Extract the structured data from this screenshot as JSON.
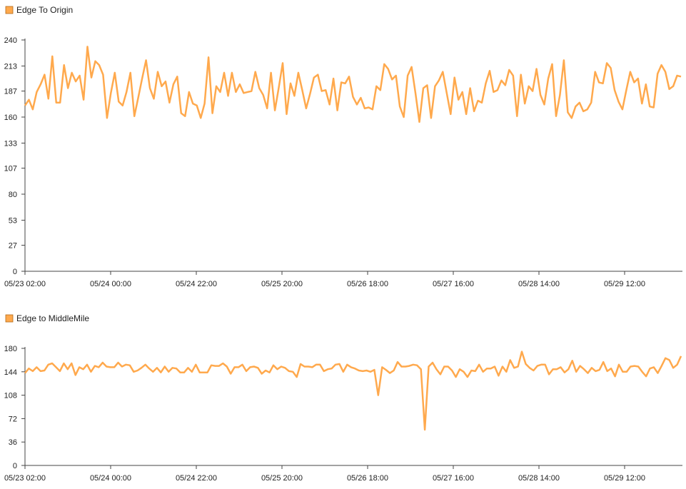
{
  "chart_data": [
    {
      "type": "line",
      "legend": "Edge To Origin",
      "color": "#ffa94d",
      "ylim": [
        0,
        240
      ],
      "yticks": [
        "0",
        "27",
        "53",
        "80",
        "107",
        "133",
        "160",
        "187",
        "213",
        "240"
      ],
      "ytick_values": [
        0,
        27,
        53,
        80,
        107,
        133,
        160,
        187,
        213,
        240
      ],
      "xticks": [
        "05/23 02:00",
        "05/24 00:00",
        "05/24 22:00",
        "05/25 20:00",
        "05/26 18:00",
        "05/27 16:00",
        "05/28 14:00",
        "05/29 12:00"
      ],
      "x_start": "05/23 02:00",
      "x_interval_hours": 1,
      "values": [
        172,
        178,
        168,
        186,
        194,
        204,
        179,
        223,
        175,
        175,
        214,
        190,
        206,
        197,
        203,
        178,
        233,
        201,
        218,
        214,
        204,
        159,
        185,
        206,
        176,
        172,
        186,
        206,
        161,
        180,
        200,
        219,
        190,
        179,
        207,
        192,
        197,
        175,
        194,
        202,
        164,
        161,
        186,
        174,
        172,
        159,
        174,
        222,
        164,
        192,
        186,
        206,
        182,
        206,
        186,
        194,
        185,
        186,
        187,
        207,
        190,
        183,
        169,
        206,
        167,
        191,
        216,
        163,
        195,
        182,
        206,
        188,
        169,
        184,
        201,
        204,
        187,
        188,
        173,
        200,
        167,
        196,
        195,
        202,
        181,
        173,
        180,
        169,
        170,
        168,
        192,
        188,
        215,
        210,
        199,
        203,
        171,
        160,
        203,
        212,
        185,
        155,
        190,
        193,
        159,
        192,
        198,
        207,
        185,
        163,
        201,
        178,
        186,
        163,
        190,
        166,
        177,
        175,
        195,
        208,
        186,
        188,
        198,
        193,
        209,
        203,
        161,
        204,
        174,
        192,
        187,
        210,
        183,
        173,
        200,
        215,
        161,
        183,
        219,
        165,
        159,
        171,
        175,
        166,
        168,
        175,
        207,
        196,
        195,
        216,
        211,
        188,
        176,
        168,
        188,
        207,
        196,
        200,
        174,
        194,
        171,
        170,
        205,
        214,
        207,
        189,
        192,
        203,
        202
      ]
    },
    {
      "type": "line",
      "legend": "Edge to MiddleMile",
      "color": "#ffa94d",
      "ylim": [
        0,
        180
      ],
      "yticks": [
        "0",
        "36",
        "72",
        "108",
        "144",
        "180"
      ],
      "ytick_values": [
        0,
        36,
        72,
        108,
        144,
        180
      ],
      "xticks": [
        "05/23 02:00",
        "05/24 00:00",
        "05/24 22:00",
        "05/25 20:00",
        "05/26 18:00",
        "05/27 16:00",
        "05/28 14:00",
        "05/29 12:00"
      ],
      "x_start": "05/23 02:00",
      "x_interval_hours": 1,
      "values": [
        142,
        149,
        145,
        151,
        145,
        146,
        155,
        157,
        151,
        145,
        157,
        148,
        157,
        139,
        151,
        148,
        155,
        144,
        153,
        151,
        158,
        152,
        151,
        151,
        158,
        152,
        155,
        154,
        144,
        146,
        150,
        155,
        149,
        144,
        150,
        143,
        152,
        144,
        150,
        149,
        143,
        143,
        150,
        144,
        155,
        143,
        143,
        143,
        154,
        153,
        153,
        157,
        152,
        141,
        151,
        151,
        155,
        145,
        151,
        152,
        150,
        141,
        146,
        143,
        154,
        148,
        152,
        150,
        145,
        144,
        136,
        156,
        152,
        152,
        151,
        155,
        155,
        145,
        148,
        149,
        155,
        156,
        144,
        155,
        151,
        149,
        146,
        145,
        146,
        144,
        147,
        108,
        151,
        147,
        142,
        146,
        159,
        152,
        152,
        153,
        155,
        154,
        148,
        55,
        152,
        158,
        148,
        140,
        152,
        152,
        146,
        136,
        148,
        144,
        136,
        146,
        145,
        155,
        144,
        149,
        149,
        152,
        138,
        152,
        144,
        162,
        150,
        152,
        175,
        156,
        150,
        146,
        153,
        155,
        155,
        140,
        148,
        148,
        151,
        143,
        148,
        161,
        144,
        153,
        148,
        142,
        150,
        145,
        147,
        159,
        145,
        149,
        137,
        155,
        144,
        144,
        152,
        153,
        152,
        144,
        137,
        149,
        151,
        142,
        153,
        165,
        162,
        150,
        155,
        168
      ]
    }
  ]
}
